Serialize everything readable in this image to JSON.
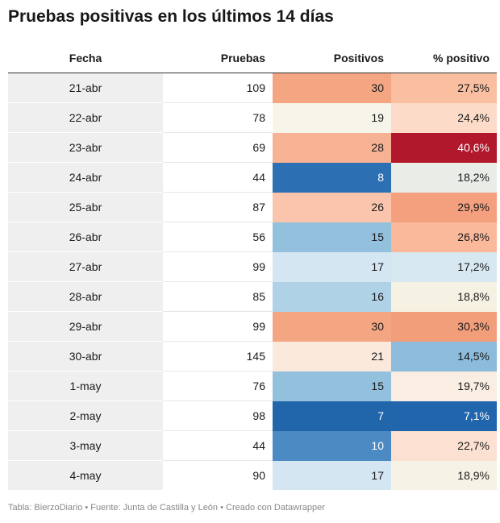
{
  "title": "Pruebas positivas en los últimos 14 días",
  "footer": "Tabla: BierzoDiario • Fuente: Junta de Castilla y León • Creado con Datawrapper",
  "chart_data": {
    "type": "table",
    "columns": [
      "Fecha",
      "Pruebas",
      "Positivos",
      "% positivo"
    ],
    "rows": [
      {
        "fecha": "21-abr",
        "pruebas": "109",
        "positivos": "30",
        "pct": "27,5%",
        "bg_positivos": "#f4a582",
        "bg_pct": "#f9bfa0",
        "fg_positivos": "#1a1a1a",
        "fg_pct": "#1a1a1a"
      },
      {
        "fecha": "22-abr",
        "pruebas": "78",
        "positivos": "19",
        "pct": "24,4%",
        "bg_positivos": "#f7f5e9",
        "bg_pct": "#fcdcc8",
        "fg_positivos": "#1a1a1a",
        "fg_pct": "#1a1a1a"
      },
      {
        "fecha": "23-abr",
        "pruebas": "69",
        "positivos": "28",
        "pct": "40,6%",
        "bg_positivos": "#f7b294",
        "bg_pct": "#b2182b",
        "fg_positivos": "#1a1a1a",
        "fg_pct": "#ffffff"
      },
      {
        "fecha": "24-abr",
        "pruebas": "44",
        "positivos": "8",
        "pct": "18,2%",
        "bg_positivos": "#2c6fb3",
        "bg_pct": "#e9ece7",
        "fg_positivos": "#ffffff",
        "fg_pct": "#1a1a1a"
      },
      {
        "fecha": "25-abr",
        "pruebas": "87",
        "positivos": "26",
        "pct": "29,9%",
        "bg_positivos": "#fbc5ad",
        "bg_pct": "#f4a07f",
        "fg_positivos": "#1a1a1a",
        "fg_pct": "#1a1a1a"
      },
      {
        "fecha": "26-abr",
        "pruebas": "56",
        "positivos": "15",
        "pct": "26,8%",
        "bg_positivos": "#92c0dd",
        "bg_pct": "#fab99b",
        "fg_positivos": "#1a1a1a",
        "fg_pct": "#1a1a1a"
      },
      {
        "fecha": "27-abr",
        "pruebas": "99",
        "positivos": "17",
        "pct": "17,2%",
        "bg_positivos": "#d4e6f1",
        "bg_pct": "#d8e8f1",
        "fg_positivos": "#1a1a1a",
        "fg_pct": "#1a1a1a"
      },
      {
        "fecha": "28-abr",
        "pruebas": "85",
        "positivos": "16",
        "pct": "18,8%",
        "bg_positivos": "#b0d2e7",
        "bg_pct": "#f5f2e4",
        "fg_positivos": "#1a1a1a",
        "fg_pct": "#1a1a1a"
      },
      {
        "fecha": "29-abr",
        "pruebas": "99",
        "positivos": "30",
        "pct": "30,3%",
        "bg_positivos": "#f4a582",
        "bg_pct": "#f39e7b",
        "fg_positivos": "#1a1a1a",
        "fg_pct": "#1a1a1a"
      },
      {
        "fecha": "30-abr",
        "pruebas": "145",
        "positivos": "21",
        "pct": "14,5%",
        "bg_positivos": "#fbeadc",
        "bg_pct": "#8cbbdb",
        "fg_positivos": "#1a1a1a",
        "fg_pct": "#1a1a1a"
      },
      {
        "fecha": "1-may",
        "pruebas": "76",
        "positivos": "15",
        "pct": "19,7%",
        "bg_positivos": "#92c0dd",
        "bg_pct": "#faeee3",
        "fg_positivos": "#1a1a1a",
        "fg_pct": "#1a1a1a"
      },
      {
        "fecha": "2-may",
        "pruebas": "98",
        "positivos": "7",
        "pct": "7,1%",
        "bg_positivos": "#2165ab",
        "bg_pct": "#2166ac",
        "fg_positivos": "#ffffff",
        "fg_pct": "#ffffff"
      },
      {
        "fecha": "3-may",
        "pruebas": "44",
        "positivos": "10",
        "pct": "22,7%",
        "bg_positivos": "#4b8ac2",
        "bg_pct": "#fce1d2",
        "fg_positivos": "#ffffff",
        "fg_pct": "#1a1a1a"
      },
      {
        "fecha": "4-may",
        "pruebas": "90",
        "positivos": "17",
        "pct": "18,9%",
        "bg_positivos": "#d4e6f1",
        "bg_pct": "#f6f3e6",
        "fg_positivos": "#1a1a1a",
        "fg_pct": "#1a1a1a"
      }
    ]
  }
}
